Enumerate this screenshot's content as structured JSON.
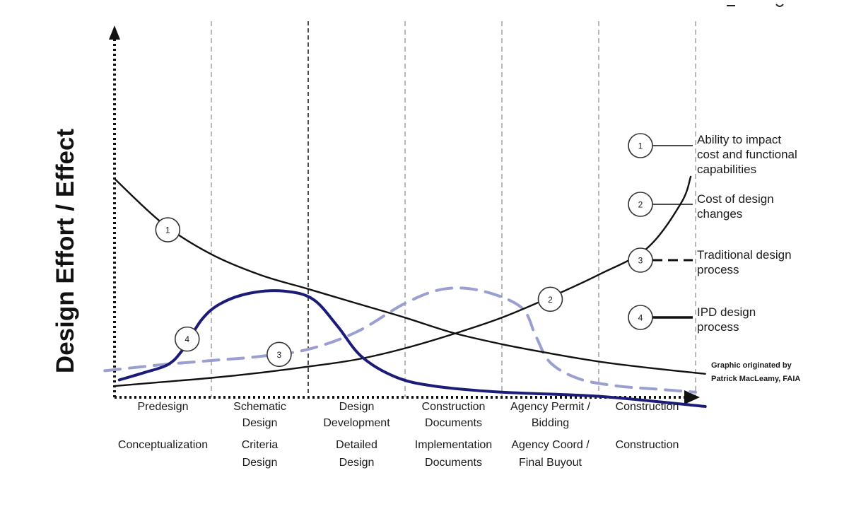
{
  "chart_data": {
    "type": "line",
    "ylabel": "Design Effort / Effect",
    "xlabel": "",
    "x_phases": [
      {
        "top": [
          "Predesign"
        ],
        "bottom": [
          "Conceptualization"
        ]
      },
      {
        "top": [
          "Schematic",
          "Design"
        ],
        "bottom": [
          "Criteria",
          "Design"
        ]
      },
      {
        "top": [
          "Design",
          "Development"
        ],
        "bottom": [
          "Detailed",
          "Design"
        ]
      },
      {
        "top": [
          "Construction",
          "Documents"
        ],
        "bottom": [
          "Implementation",
          "Documents"
        ]
      },
      {
        "top": [
          "Agency Permit /",
          "Bidding"
        ],
        "bottom": [
          "Agency Coord /",
          "Final Buyout"
        ]
      },
      {
        "top": [
          "Construction"
        ],
        "bottom": [
          "Construction"
        ]
      }
    ],
    "phase_boundaries": [
      1,
      2,
      3,
      4,
      5,
      6
    ],
    "boundary_styles": [
      "dashed-gray",
      "dashed-black",
      "dashed-gray",
      "dashed-gray",
      "dashed-gray",
      "dashed-gray"
    ],
    "xlim": [
      0,
      6.3
    ],
    "ylim": [
      0,
      10
    ],
    "grid": false,
    "legend_position": "right",
    "series": [
      {
        "id": "1",
        "name": "Ability to impact cost and functional capabilities",
        "style": "solid-black",
        "marker_at": [
          0.55,
          8.2
        ],
        "points": [
          [
            0,
            10.7
          ],
          [
            0.5,
            8.5
          ],
          [
            1,
            7.0
          ],
          [
            1.5,
            6.0
          ],
          [
            2,
            5.3
          ],
          [
            2.5,
            4.6
          ],
          [
            3,
            3.9
          ],
          [
            3.5,
            3.15
          ],
          [
            4,
            2.6
          ],
          [
            4.5,
            2.15
          ],
          [
            5,
            1.75
          ],
          [
            5.5,
            1.45
          ],
          [
            6.1,
            1.15
          ]
        ]
      },
      {
        "id": "2",
        "name": "Cost of design changes",
        "style": "solid-black",
        "marker_at": [
          4.5,
          4.8
        ],
        "points": [
          [
            0,
            0.55
          ],
          [
            0.5,
            0.75
          ],
          [
            1,
            0.95
          ],
          [
            1.5,
            1.2
          ],
          [
            2,
            1.5
          ],
          [
            2.5,
            1.85
          ],
          [
            3,
            2.4
          ],
          [
            3.5,
            3.1
          ],
          [
            4,
            3.9
          ],
          [
            4.5,
            4.9
          ],
          [
            5,
            6.0
          ],
          [
            5.5,
            7.3
          ],
          [
            5.85,
            9.5
          ],
          [
            5.95,
            10.8
          ]
        ]
      },
      {
        "id": "3",
        "name": "Traditional design process",
        "style": "dashed-lavender",
        "marker_at": [
          1.7,
          2.1
        ],
        "points": [
          [
            -0.1,
            1.3
          ],
          [
            0.5,
            1.6
          ],
          [
            1,
            1.8
          ],
          [
            1.5,
            2.0
          ],
          [
            2,
            2.35
          ],
          [
            2.5,
            3.2
          ],
          [
            3,
            4.6
          ],
          [
            3.4,
            5.3
          ],
          [
            3.8,
            5.2
          ],
          [
            4.2,
            4.4
          ],
          [
            4.35,
            3.0
          ],
          [
            4.5,
            1.7
          ],
          [
            4.8,
            0.9
          ],
          [
            5.2,
            0.55
          ],
          [
            5.6,
            0.4
          ],
          [
            6.0,
            0.25
          ]
        ]
      },
      {
        "id": "4",
        "name": "IPD design process",
        "style": "solid-navy",
        "marker_at": [
          0.75,
          2.85
        ],
        "points": [
          [
            0.05,
            0.85
          ],
          [
            0.3,
            1.2
          ],
          [
            0.55,
            1.6
          ],
          [
            0.7,
            2.3
          ],
          [
            0.9,
            3.8
          ],
          [
            1.1,
            4.6
          ],
          [
            1.4,
            5.1
          ],
          [
            1.75,
            5.2
          ],
          [
            2.05,
            4.8
          ],
          [
            2.3,
            3.5
          ],
          [
            2.55,
            2.0
          ],
          [
            2.9,
            1.0
          ],
          [
            3.3,
            0.55
          ],
          [
            4,
            0.25
          ],
          [
            5,
            0.05
          ],
          [
            6.1,
            -0.45
          ]
        ]
      }
    ]
  },
  "legend": [
    {
      "number": "1",
      "lines": [
        "Ability to impact",
        "cost and functional",
        "capabilities"
      ]
    },
    {
      "number": "2",
      "lines": [
        "Cost of design",
        "changes"
      ]
    },
    {
      "number": "3",
      "lines": [
        "Traditional design",
        "process"
      ]
    },
    {
      "number": "4",
      "lines": [
        "IPD design",
        "process"
      ]
    }
  ],
  "credit": [
    "Graphic originated by",
    "Patrick MacLeamy, FAIA"
  ],
  "colors": {
    "black_curve": "#111111",
    "ipd_curve": "#1c1c78",
    "traditional_curve": "#9b9fd0",
    "gray_divider": "#8a8a8a",
    "axis": "#111111"
  }
}
